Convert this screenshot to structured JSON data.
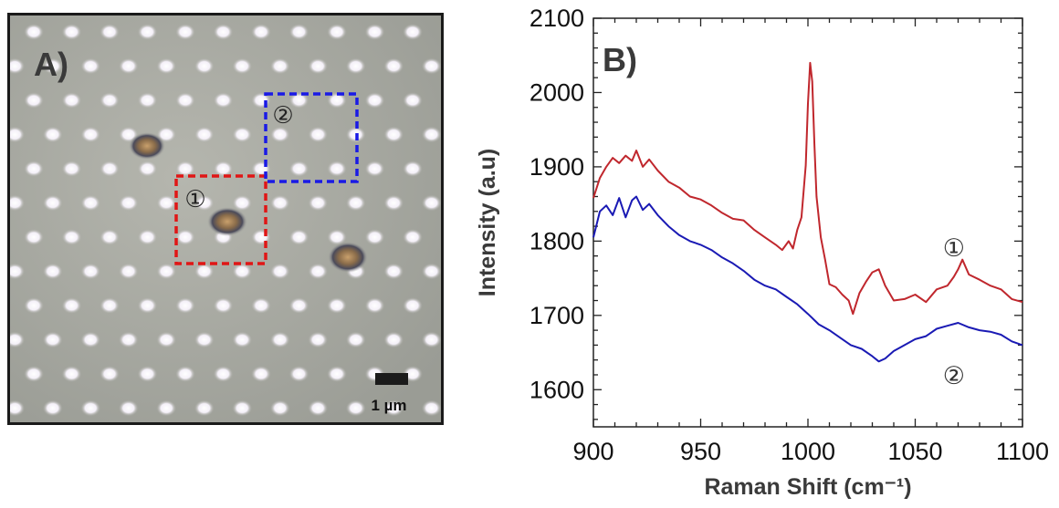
{
  "panel_a": {
    "label": "A)",
    "scalebar_label": "1 µm",
    "regions": [
      {
        "marker": "①",
        "color": "#e01616"
      },
      {
        "marker": "②",
        "color": "#1a1ae6"
      }
    ]
  },
  "chart_data": {
    "type": "line",
    "panel_label": "B)",
    "xlabel": "Raman Shift (cm⁻¹)",
    "ylabel": "Intensity (a.u)",
    "xlim": [
      900,
      1100
    ],
    "ylim": [
      1550,
      2100
    ],
    "xticks": [
      900,
      950,
      1000,
      1050,
      1100
    ],
    "yticks": [
      1600,
      1700,
      1800,
      1900,
      2000,
      2100
    ],
    "grid": false,
    "series": [
      {
        "label": "①",
        "color": "#c0272d",
        "x": [
          900,
          903,
          906,
          909,
          912,
          915,
          918,
          920,
          923,
          926,
          930,
          935,
          940,
          945,
          950,
          955,
          960,
          965,
          970,
          975,
          980,
          985,
          988,
          991,
          993,
          995,
          997,
          999,
          1000,
          1001,
          1002,
          1003,
          1004,
          1006,
          1008,
          1010,
          1013,
          1016,
          1019,
          1021,
          1024,
          1027,
          1030,
          1033,
          1036,
          1040,
          1045,
          1050,
          1055,
          1060,
          1065,
          1068,
          1070,
          1072,
          1075,
          1080,
          1085,
          1090,
          1095,
          1100
        ],
        "y": [
          1858,
          1885,
          1900,
          1912,
          1905,
          1915,
          1908,
          1922,
          1900,
          1910,
          1895,
          1880,
          1872,
          1860,
          1856,
          1848,
          1838,
          1830,
          1828,
          1815,
          1805,
          1795,
          1788,
          1800,
          1790,
          1815,
          1832,
          1902,
          1985,
          2040,
          2015,
          1930,
          1860,
          1805,
          1775,
          1742,
          1738,
          1728,
          1720,
          1702,
          1730,
          1745,
          1758,
          1762,
          1740,
          1720,
          1722,
          1728,
          1718,
          1735,
          1740,
          1752,
          1762,
          1775,
          1755,
          1748,
          1740,
          1735,
          1722,
          1718
        ]
      },
      {
        "label": "②",
        "color": "#1a1ab4",
        "x": [
          900,
          903,
          906,
          909,
          912,
          915,
          918,
          920,
          923,
          926,
          930,
          935,
          940,
          945,
          950,
          955,
          960,
          965,
          970,
          975,
          980,
          985,
          990,
          995,
          1000,
          1005,
          1010,
          1015,
          1020,
          1025,
          1030,
          1033,
          1036,
          1040,
          1045,
          1050,
          1055,
          1060,
          1065,
          1070,
          1075,
          1080,
          1085,
          1090,
          1095,
          1100
        ],
        "y": [
          1805,
          1840,
          1848,
          1835,
          1858,
          1832,
          1855,
          1860,
          1842,
          1850,
          1835,
          1820,
          1808,
          1800,
          1795,
          1788,
          1778,
          1770,
          1760,
          1748,
          1740,
          1735,
          1725,
          1715,
          1702,
          1688,
          1680,
          1670,
          1660,
          1655,
          1645,
          1638,
          1642,
          1652,
          1660,
          1668,
          1672,
          1682,
          1686,
          1690,
          1684,
          1680,
          1678,
          1674,
          1665,
          1660
        ]
      }
    ]
  }
}
